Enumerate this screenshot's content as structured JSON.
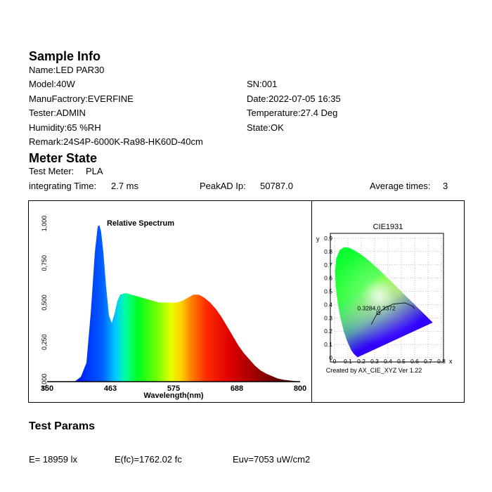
{
  "sample_info": {
    "heading": "Sample Info",
    "name": "Name:LED PAR30",
    "model": "Model:40W",
    "sn": "SN:001",
    "manufactory": "ManuFactrory:EVERFINE",
    "date": "Date:2022-07-05 16:35",
    "tester": "Tester:ADMIN",
    "temperature": "Temperature:27.4 Deg",
    "humidity": "Humidity:65 %RH",
    "state": "State:OK",
    "remark": "Remark:24S4P-6000K-Ra98-HK60D-40cm"
  },
  "meter_state": {
    "heading": "Meter State",
    "test_meter_label": "Test Meter:",
    "test_meter_value": "PLA",
    "integrating_label": "integrating Time:",
    "integrating_value": "2.7 ms",
    "peakad_label": "PeakAD Ip:",
    "peakad_value": "50787.0",
    "avg_label": "Average times:",
    "avg_value": "3"
  },
  "chart_data": [
    {
      "type": "area",
      "title": "Relative Spectrum",
      "xlabel": "Wavelength(nm)",
      "ylabel": "",
      "xlim": [
        350,
        800
      ],
      "ylim": [
        0,
        1.0
      ],
      "x_tick_labels": [
        "350",
        "463",
        "575",
        "688",
        "800"
      ],
      "y_tick_labels": [
        "0,000",
        "0,250",
        "0,500",
        "0,750",
        "1,000"
      ],
      "x": [
        350,
        380,
        400,
        410,
        420,
        428,
        435,
        440,
        443,
        446,
        450,
        455,
        460,
        465,
        470,
        475,
        480,
        490,
        500,
        510,
        520,
        530,
        540,
        550,
        560,
        570,
        580,
        590,
        600,
        610,
        620,
        630,
        640,
        650,
        660,
        670,
        680,
        690,
        700,
        710,
        720,
        730,
        740,
        750,
        760,
        770,
        780,
        790,
        800
      ],
      "y": [
        0,
        0,
        0.003,
        0.03,
        0.12,
        0.45,
        0.82,
        0.98,
        0.99,
        0.95,
        0.82,
        0.6,
        0.42,
        0.37,
        0.43,
        0.51,
        0.55,
        0.56,
        0.55,
        0.54,
        0.53,
        0.52,
        0.51,
        0.5,
        0.5,
        0.5,
        0.5,
        0.51,
        0.53,
        0.55,
        0.55,
        0.53,
        0.5,
        0.46,
        0.41,
        0.35,
        0.29,
        0.23,
        0.18,
        0.14,
        0.1,
        0.07,
        0.05,
        0.035,
        0.02,
        0.012,
        0.008,
        0.004,
        0.002
      ]
    },
    {
      "type": "scatter",
      "title": "CIE1931",
      "xlabel": "x",
      "ylabel": "y",
      "xlim": [
        0,
        0.8
      ],
      "ylim": [
        0,
        0.9
      ],
      "x_tick_labels": [
        "0",
        "0.1",
        "0.2",
        "0.3",
        "0.4",
        "0.5",
        "0.6",
        "0.7",
        "0.8"
      ],
      "y_tick_labels": [
        "0",
        "0.1",
        "0.2",
        "0.3",
        "0.4",
        "0.5",
        "0.6",
        "0.7",
        "0.8",
        "0.9"
      ],
      "point": {
        "x": 0.3284,
        "y": 0.3372
      },
      "point_label": "0.3284,0.3372",
      "footer": "Created by AX_CIE_XYZ Ver 1.22"
    }
  ],
  "test_params": {
    "heading": "Test Params",
    "e": "E=  18959 lx",
    "efc": "E(fc)=1762.02 fc",
    "euv": "Euv=7053 uW/cm2"
  }
}
